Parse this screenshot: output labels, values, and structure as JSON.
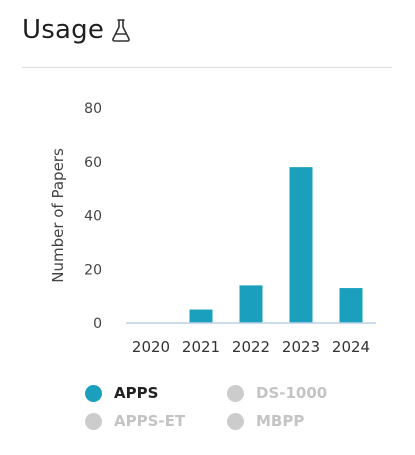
{
  "header": {
    "title": "Usage"
  },
  "colors": {
    "active": "#1aa0bd",
    "inactive": "#cccccc",
    "axis": "#bcd0e6",
    "text": "#444444"
  },
  "chart_data": {
    "type": "bar",
    "ylabel": "Number of Papers",
    "xlabel": "",
    "categories": [
      "2020",
      "2021",
      "2022",
      "2023",
      "2024"
    ],
    "yticks": [
      0,
      20,
      40,
      60,
      80
    ],
    "ylim": [
      0,
      80
    ],
    "grid": false,
    "legend_position": "bottom",
    "series": [
      {
        "name": "APPS",
        "values": [
          0,
          5,
          14,
          58,
          13
        ],
        "active": true
      }
    ]
  },
  "legend": [
    {
      "label": "APPS",
      "active": true
    },
    {
      "label": "DS-1000",
      "active": false
    },
    {
      "label": "APPS-ET",
      "active": false
    },
    {
      "label": "MBPP",
      "active": false
    }
  ]
}
